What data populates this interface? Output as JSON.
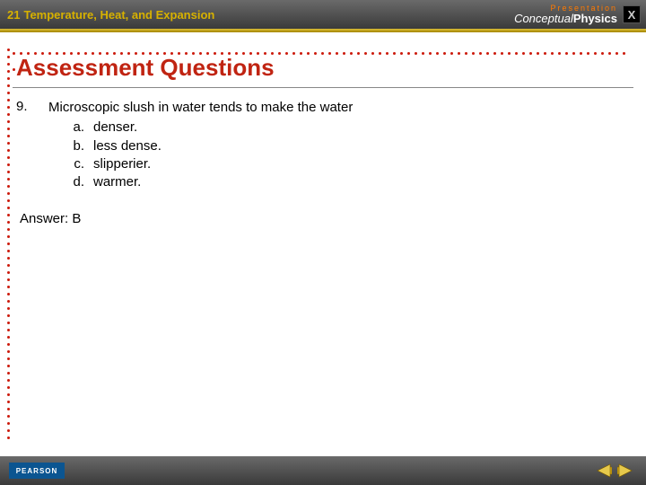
{
  "colors": {
    "accent_red": "#c02412",
    "dot_red": "#cc1a0c",
    "gold": "#d7b100",
    "header_grad_top": "#6a6a6a",
    "header_grad_bot": "#3a3a3a",
    "pearson_blue": "#0b5591",
    "brand_orange": "#ff7a00"
  },
  "topbar": {
    "chapter_number": "21",
    "chapter_title": "Temperature, Heat, and Expansion",
    "brand_line1": "Presentation",
    "brand_line2a": "Conceptual",
    "brand_line2b": "Physics",
    "close_glyph": "X"
  },
  "content": {
    "heading": "Assessment Questions",
    "question_number": "9.",
    "question_stem": "Microscopic slush in water tends to make the water",
    "choices": [
      {
        "letter": "a.",
        "text": "denser."
      },
      {
        "letter": "b.",
        "text": "less dense."
      },
      {
        "letter": "c.",
        "text": "slipperier."
      },
      {
        "letter": "d.",
        "text": "warmer."
      }
    ],
    "answer_label": "Answer: B"
  },
  "bottombar": {
    "pearson_label": "PEARSON"
  }
}
